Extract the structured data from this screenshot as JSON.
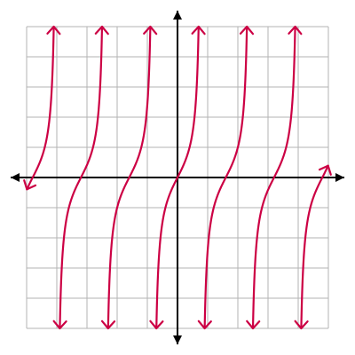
{
  "chart_data": {
    "type": "line",
    "title": "",
    "xlabel": "",
    "ylabel": "",
    "xlim": [
      -5,
      5
    ],
    "ylim": [
      -5,
      5
    ],
    "grid": true,
    "axis_arrows": true,
    "series": [
      {
        "function": "tangent",
        "period": 1.6,
        "zeros": [
          -4.8,
          -3.2,
          -1.6,
          0,
          1.6,
          3.2,
          4.8
        ],
        "vertical_asymptotes": [
          -4,
          -2.4,
          -0.8,
          0.8,
          2.4,
          4
        ],
        "color": "#cc0044",
        "arrow_ends": true
      }
    ]
  },
  "colors": {
    "grid": "#b3b3b3",
    "axes": "#000000",
    "curve": "#cc0044",
    "background": "#ffffff"
  }
}
